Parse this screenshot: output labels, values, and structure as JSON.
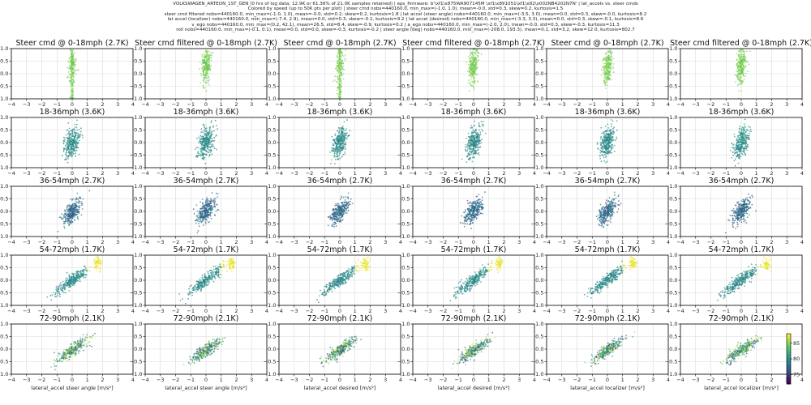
{
  "header": {
    "lines": [
      "VOLKSWAGEN_ARTEON_1ST_GEN (0 hrs of log data; 12.9K or 61.36% of 21.0K samples retained) | eps_firmware: b'\\xf1\\x875WA907145M \\xf1\\x891051\\xf1\\x82\\x002NB4202N7N' | lat_accels vs. steer cmds",
      "Colored by  speed (up to 50K pts per plot) | steer cmd  nobs=440160.0, min_max=(-1.0, 1.0), mean=-0.0, std=0.3, skew=0.2, kurtosis=1.5",
      "steer cmd filtered  nobs=440160.0, min_max=(-1.0, 1.0), mean=-0.0, std=0.2, skew=0.2, kurtosis=1.8 | lat accel (steer angle)  nobs=440160.0, min_max=(-3.5, 3.0), mean=0.0, std=0.3, skew=-0.0, kurtosis=8.2",
      "lat accel (localizer)  nobs=440160.0, min_max=(-7.4, 2.9), mean=0.0, std=0.3, skew=-0.1, kurtosis=9.2 | lat accel (desired)  nobs=440160.0, min_max=(-3.3, 3.3), mean=0.0, std=0.3, skew=-0.1, kurtosis=8.6",
      "v_ego  nobs=440160.0, min_max=(0.2, 42.1), mean=26.5, std=8.4, skew=-0.9, kurtosis=0.2 | a_ego  nobs=440160.0, min_max=(-2.0, 2.0), mean=-0.0, std=0.3, skew=-0.3, kurtosis=11.3",
      "roll  nobs=440160.0, min_max=(-0.1, 0.1), mean=0.0, std=0.0, skew=-0.3, kurtosis=-0.2 | steer angle (deg)  nobs=440160.0, min_max=(-208.0, 193.3), mean=0.1, std=3.2, skew=12.0, kurtosis=802.7"
    ]
  },
  "colors": {
    "low": "#440154",
    "mid1": "#31688e",
    "mid2": "#35b779",
    "high": "#fde725",
    "grid": "#d9d9d9",
    "axis": "#000000"
  },
  "chart_data": {
    "type": "scatter",
    "grid": true,
    "xlim": [
      -4,
      4
    ],
    "ylim": [
      -1.0,
      1.0
    ],
    "xticks": [
      "−4",
      "−3",
      "−2",
      "−1",
      "0",
      "1",
      "2",
      "3",
      "4"
    ],
    "yticks": [
      "−1.0",
      "−0.5",
      "0.0",
      "0.5",
      "1.0"
    ],
    "columns": [
      {
        "series": "Steer cmd",
        "xlabel": "lateral_accel steer angle [m/s²]"
      },
      {
        "series": "Steer cmd filtered",
        "xlabel": "lateral_accel steer angle [m/s²]"
      },
      {
        "series": "Steer cmd",
        "xlabel": "lateral_accel desired [m/s²]"
      },
      {
        "series": "Steer cmd filtered",
        "xlabel": "lateral_accel desired [m/s²]"
      },
      {
        "series": "Steer cmd",
        "xlabel": "lateral_accel localizer [m/s²]"
      },
      {
        "series": "Steer cmd filtered",
        "xlabel": "lateral_accel localizer [m/s²]"
      }
    ],
    "rows": [
      {
        "label": "0-18mph (2.7K)",
        "speed_mph": [
          0,
          18
        ],
        "slope": 0.55,
        "xspread": 0.15,
        "yspread": 0.35,
        "center": [
          0.0,
          0.3
        ]
      },
      {
        "label": "18-36mph (3.6K)",
        "speed_mph": [
          18,
          36
        ],
        "slope": 0.45,
        "xspread": 0.25,
        "yspread": 0.28,
        "center": [
          0.0,
          0.0
        ]
      },
      {
        "label": "36-54mph (2.7K)",
        "speed_mph": [
          36,
          54
        ],
        "slope": 0.5,
        "xspread": 0.3,
        "yspread": 0.2,
        "center": [
          0.0,
          0.0
        ]
      },
      {
        "label": "54-72mph (1.7K)",
        "speed_mph": [
          54,
          72
        ],
        "slope": 0.45,
        "xspread": 0.6,
        "yspread": 0.12,
        "center": [
          0.0,
          0.0
        ]
      },
      {
        "label": "72-90mph (2.1K)",
        "speed_mph": [
          72,
          90
        ],
        "slope": 0.4,
        "xspread": 0.5,
        "yspread": 0.12,
        "center": [
          0.0,
          -0.05
        ]
      }
    ],
    "colorbar": {
      "range": [
        72,
        88
      ],
      "ticks": [
        "75",
        "80",
        "85"
      ]
    }
  }
}
